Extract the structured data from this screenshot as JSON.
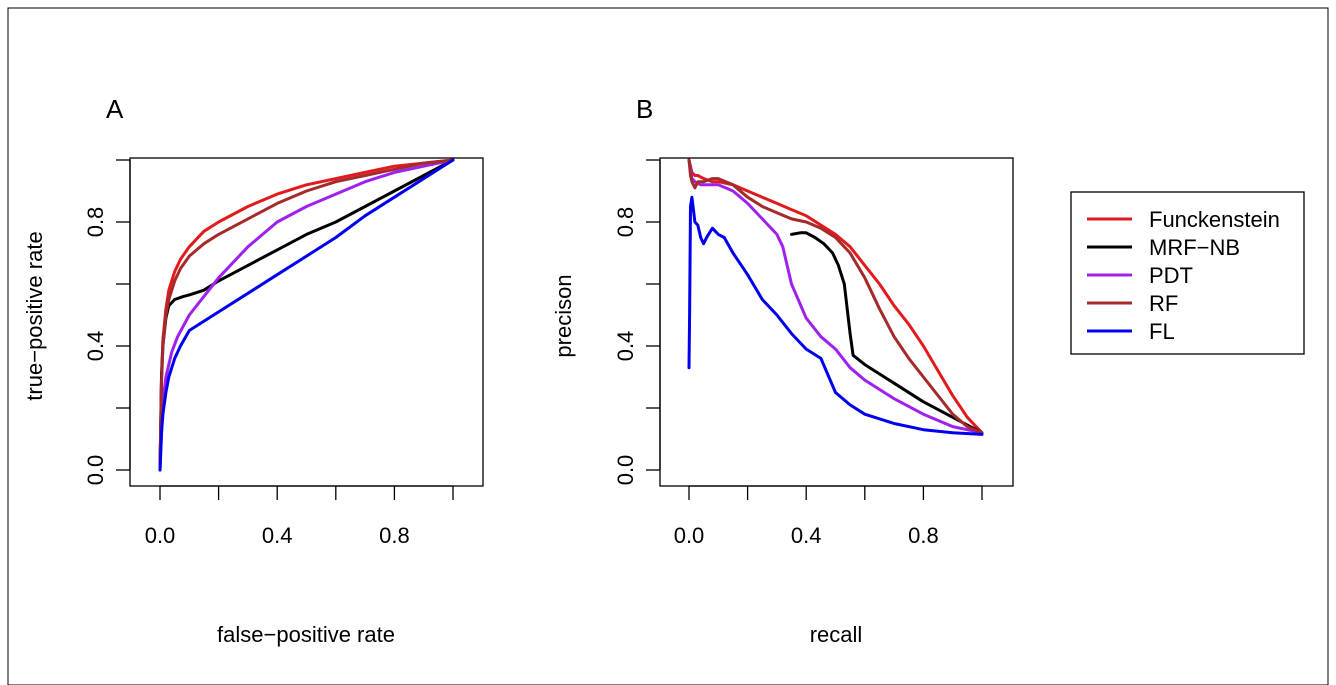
{
  "chart_data": [
    {
      "type": "line",
      "panel_label": "A",
      "xlabel": "false−positive rate",
      "ylabel": "true−positive rate",
      "xlim": [
        0,
        1
      ],
      "ylim": [
        0,
        1
      ],
      "xticks": [
        0.0,
        0.2,
        0.4,
        0.6,
        0.8,
        1.0
      ],
      "xtick_labels": [
        "0.0",
        "",
        "0.4",
        "",
        "0.8",
        ""
      ],
      "yticks": [
        0.0,
        0.2,
        0.4,
        0.6,
        0.8,
        1.0
      ],
      "ytick_labels": [
        "0.0",
        "",
        "0.4",
        "",
        "0.8",
        ""
      ],
      "grid": false,
      "series": [
        {
          "name": "Funckenstein",
          "color": "#e31a1c",
          "x": [
            0,
            0.005,
            0.01,
            0.02,
            0.03,
            0.05,
            0.07,
            0.1,
            0.15,
            0.2,
            0.3,
            0.4,
            0.5,
            0.6,
            0.7,
            0.8,
            0.9,
            1.0
          ],
          "y": [
            0,
            0.3,
            0.42,
            0.52,
            0.58,
            0.64,
            0.68,
            0.72,
            0.77,
            0.8,
            0.85,
            0.89,
            0.92,
            0.94,
            0.96,
            0.98,
            0.99,
            1.0
          ]
        },
        {
          "name": "MRF−NB",
          "color": "#000000",
          "x": [
            0,
            0.005,
            0.01,
            0.02,
            0.03,
            0.05,
            0.08,
            0.1,
            0.15,
            0.2,
            0.3,
            0.4,
            0.5,
            0.6,
            0.7,
            0.8,
            0.9,
            1.0
          ],
          "y": [
            0,
            0.3,
            0.4,
            0.49,
            0.53,
            0.55,
            0.56,
            0.565,
            0.58,
            0.61,
            0.66,
            0.71,
            0.76,
            0.8,
            0.85,
            0.9,
            0.95,
            1.0
          ]
        },
        {
          "name": "PDT",
          "color": "#a020f0",
          "x": [
            0,
            0.01,
            0.02,
            0.04,
            0.06,
            0.1,
            0.15,
            0.2,
            0.3,
            0.4,
            0.5,
            0.6,
            0.7,
            0.8,
            0.9,
            1.0
          ],
          "y": [
            0,
            0.22,
            0.3,
            0.38,
            0.43,
            0.5,
            0.56,
            0.62,
            0.72,
            0.8,
            0.85,
            0.89,
            0.93,
            0.96,
            0.98,
            1.0
          ]
        },
        {
          "name": "RF",
          "color": "#a52a2a",
          "x": [
            0,
            0.005,
            0.01,
            0.02,
            0.03,
            0.05,
            0.07,
            0.1,
            0.15,
            0.2,
            0.3,
            0.4,
            0.5,
            0.6,
            0.7,
            0.8,
            0.9,
            1.0
          ],
          "y": [
            0,
            0.28,
            0.4,
            0.5,
            0.55,
            0.61,
            0.65,
            0.69,
            0.73,
            0.76,
            0.81,
            0.86,
            0.9,
            0.93,
            0.95,
            0.97,
            0.99,
            1.0
          ]
        },
        {
          "name": "FL",
          "color": "#0000ee",
          "x": [
            0,
            0.005,
            0.01,
            0.02,
            0.03,
            0.05,
            0.07,
            0.1,
            0.2,
            0.3,
            0.4,
            0.5,
            0.6,
            0.7,
            0.8,
            0.9,
            1.0
          ],
          "y": [
            0,
            0.12,
            0.18,
            0.25,
            0.3,
            0.36,
            0.4,
            0.45,
            0.51,
            0.57,
            0.63,
            0.69,
            0.75,
            0.82,
            0.88,
            0.94,
            1.0
          ]
        }
      ]
    },
    {
      "type": "line",
      "panel_label": "B",
      "xlabel": "recall",
      "ylabel": "precison",
      "xlim": [
        0,
        1
      ],
      "ylim": [
        0,
        1
      ],
      "xticks": [
        0.0,
        0.2,
        0.4,
        0.6,
        0.8,
        1.0
      ],
      "xtick_labels": [
        "0.0",
        "",
        "0.4",
        "",
        "0.8",
        ""
      ],
      "yticks": [
        0.0,
        0.2,
        0.4,
        0.6,
        0.8,
        1.0
      ],
      "ytick_labels": [
        "0.0",
        "",
        "0.4",
        "",
        "0.8",
        ""
      ],
      "grid": false,
      "series": [
        {
          "name": "Funckenstein",
          "color": "#e31a1c",
          "x": [
            0,
            0.005,
            0.01,
            0.02,
            0.03,
            0.05,
            0.08,
            0.1,
            0.15,
            0.2,
            0.25,
            0.3,
            0.35,
            0.4,
            0.45,
            0.5,
            0.55,
            0.6,
            0.65,
            0.7,
            0.75,
            0.8,
            0.85,
            0.9,
            0.95,
            1.0
          ],
          "y": [
            1.0,
            0.98,
            0.96,
            0.95,
            0.95,
            0.94,
            0.93,
            0.93,
            0.92,
            0.9,
            0.88,
            0.86,
            0.84,
            0.82,
            0.79,
            0.76,
            0.72,
            0.66,
            0.6,
            0.53,
            0.47,
            0.4,
            0.32,
            0.24,
            0.17,
            0.12
          ]
        },
        {
          "name": "MRF−NB",
          "color": "#000000",
          "x": [
            0.35,
            0.38,
            0.4,
            0.43,
            0.46,
            0.49,
            0.51,
            0.53,
            0.54,
            0.55,
            0.56,
            0.6,
            0.7,
            0.8,
            0.9,
            1.0
          ],
          "y": [
            0.76,
            0.765,
            0.765,
            0.75,
            0.73,
            0.7,
            0.66,
            0.6,
            0.52,
            0.44,
            0.37,
            0.34,
            0.28,
            0.22,
            0.17,
            0.12
          ]
        },
        {
          "name": "PDT",
          "color": "#a020f0",
          "x": [
            0,
            0.005,
            0.01,
            0.02,
            0.04,
            0.06,
            0.1,
            0.15,
            0.2,
            0.25,
            0.3,
            0.32,
            0.35,
            0.4,
            0.45,
            0.5,
            0.55,
            0.6,
            0.7,
            0.8,
            0.9,
            1.0
          ],
          "y": [
            1.0,
            0.97,
            0.94,
            0.93,
            0.92,
            0.92,
            0.92,
            0.9,
            0.86,
            0.81,
            0.76,
            0.72,
            0.6,
            0.49,
            0.43,
            0.39,
            0.33,
            0.29,
            0.23,
            0.18,
            0.14,
            0.12
          ]
        },
        {
          "name": "RF",
          "color": "#a52a2a",
          "x": [
            0,
            0.005,
            0.01,
            0.02,
            0.03,
            0.05,
            0.08,
            0.1,
            0.15,
            0.2,
            0.25,
            0.3,
            0.35,
            0.4,
            0.45,
            0.5,
            0.55,
            0.6,
            0.65,
            0.7,
            0.75,
            0.8,
            0.85,
            0.9,
            0.95,
            1.0
          ],
          "y": [
            1.0,
            0.95,
            0.93,
            0.91,
            0.93,
            0.93,
            0.94,
            0.94,
            0.92,
            0.88,
            0.85,
            0.83,
            0.81,
            0.8,
            0.78,
            0.75,
            0.7,
            0.62,
            0.52,
            0.43,
            0.36,
            0.3,
            0.24,
            0.18,
            0.14,
            0.12
          ]
        },
        {
          "name": "FL",
          "color": "#0000ee",
          "x": [
            0,
            0.002,
            0.005,
            0.01,
            0.015,
            0.02,
            0.03,
            0.04,
            0.05,
            0.06,
            0.08,
            0.1,
            0.12,
            0.15,
            0.2,
            0.25,
            0.3,
            0.35,
            0.4,
            0.45,
            0.5,
            0.55,
            0.6,
            0.7,
            0.8,
            0.9,
            1.0
          ],
          "y": [
            0.33,
            0.5,
            0.85,
            0.88,
            0.84,
            0.8,
            0.79,
            0.75,
            0.73,
            0.75,
            0.78,
            0.76,
            0.75,
            0.7,
            0.63,
            0.55,
            0.5,
            0.44,
            0.39,
            0.36,
            0.25,
            0.21,
            0.18,
            0.15,
            0.13,
            0.12,
            0.115
          ]
        }
      ]
    }
  ],
  "legend": {
    "placement": "right",
    "items": [
      {
        "label": "Funckenstein",
        "color": "#e31a1c"
      },
      {
        "label": "MRF−NB",
        "color": "#000000"
      },
      {
        "label": "PDT",
        "color": "#a020f0"
      },
      {
        "label": "RF",
        "color": "#a52a2a"
      },
      {
        "label": "FL",
        "color": "#0000ee"
      }
    ]
  }
}
